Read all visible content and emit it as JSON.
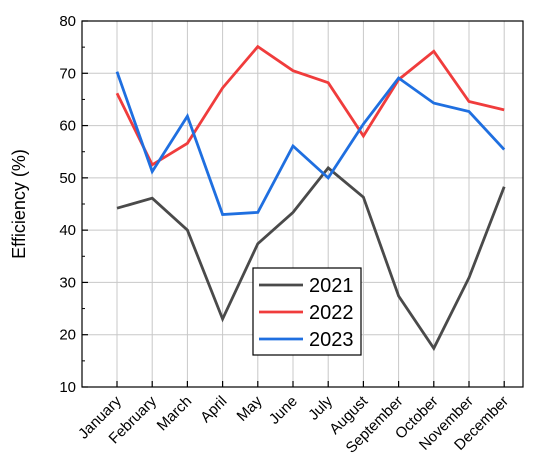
{
  "chart_data": {
    "type": "line",
    "title": "",
    "xlabel": "",
    "ylabel": "Efficiency (%)",
    "ylim": [
      10,
      80
    ],
    "y_ticks": [
      10,
      20,
      30,
      40,
      50,
      60,
      70,
      80
    ],
    "grid": true,
    "legend_position": "center",
    "categories": [
      "January",
      "February",
      "March",
      "April",
      "May",
      "June",
      "July",
      "August",
      "September",
      "October",
      "November",
      "December"
    ],
    "series": [
      {
        "name": "2021",
        "color": "#4a4a4a",
        "values": [
          44.2,
          46.1,
          40.0,
          23.0,
          37.4,
          43.4,
          51.9,
          46.3,
          27.4,
          17.4,
          30.9,
          48.3
        ]
      },
      {
        "name": "2022",
        "color": "#f03c3c",
        "values": [
          66.2,
          52.5,
          56.6,
          67.2,
          75.1,
          70.5,
          68.2,
          58.0,
          68.8,
          74.2,
          64.6,
          63.0
        ]
      },
      {
        "name": "2023",
        "color": "#1f6fe0",
        "values": [
          70.3,
          51.2,
          61.8,
          43.0,
          43.4,
          56.1,
          50.0,
          60.3,
          69.1,
          64.3,
          62.7,
          55.4
        ]
      }
    ]
  }
}
